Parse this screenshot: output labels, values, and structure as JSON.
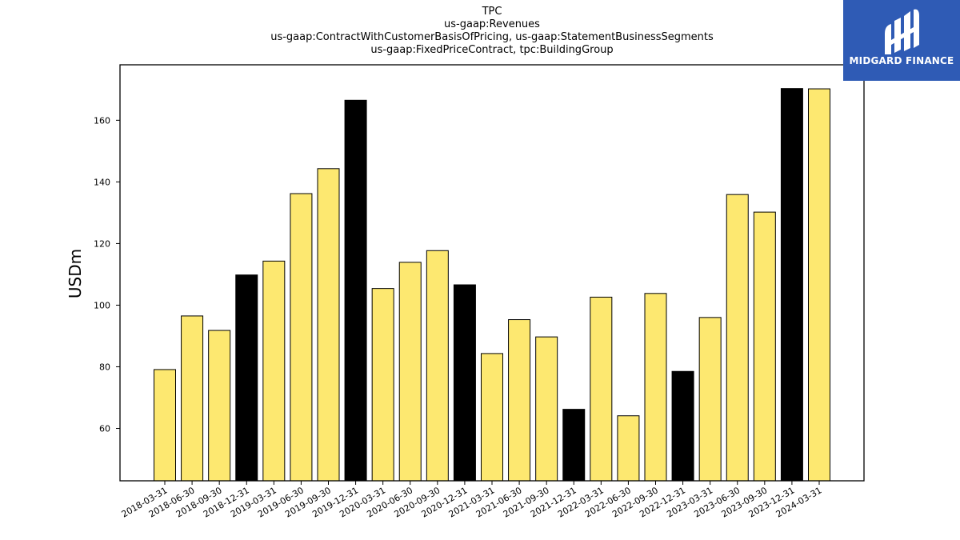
{
  "chart_data": {
    "type": "bar",
    "title_lines": [
      "TPC",
      "us-gaap:Revenues",
      "us-gaap:ContractWithCustomerBasisOfPricing, us-gaap:StatementBusinessSegments",
      "us-gaap:FixedPriceContract, tpc:BuildingGroup"
    ],
    "xlabel": "",
    "ylabel": "USDm",
    "ylim": [
      43,
      178
    ],
    "yticks": [
      60,
      80,
      100,
      120,
      140,
      160
    ],
    "grid": false,
    "categories": [
      "2018-03-31",
      "2018-06-30",
      "2018-09-30",
      "2018-12-31",
      "2019-03-31",
      "2019-06-30",
      "2019-09-30",
      "2019-12-31",
      "2020-03-31",
      "2020-06-30",
      "2020-09-30",
      "2020-12-31",
      "2021-03-31",
      "2021-06-30",
      "2021-09-30",
      "2021-12-31",
      "2022-03-31",
      "2022-06-30",
      "2022-09-30",
      "2022-12-31",
      "2023-03-31",
      "2023-06-30",
      "2023-09-30",
      "2023-12-31",
      "2024-03-31"
    ],
    "values": [
      79.1,
      96.5,
      91.8,
      109.8,
      114.3,
      136.2,
      144.3,
      166.5,
      105.4,
      113.9,
      117.7,
      106.6,
      84.3,
      95.3,
      89.7,
      66.2,
      102.6,
      64.1,
      103.8,
      78.5,
      96.0,
      135.9,
      130.2,
      170.3,
      170.2
    ],
    "colors": {
      "quarter_bar": "#fde870",
      "year_end_bar": "#000000",
      "bar_edge": "#000000"
    }
  },
  "logo": {
    "text": "MIDGARD FINANCE",
    "background": "#2f5bb5"
  }
}
